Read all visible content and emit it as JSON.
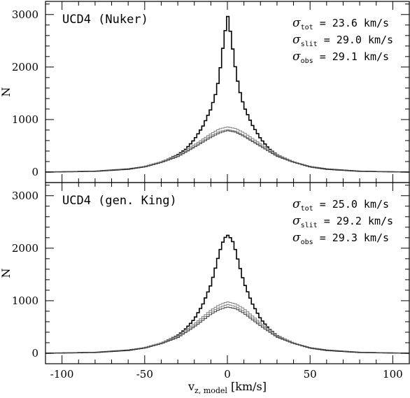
{
  "chart_data": [
    {
      "type": "line",
      "title": "UCD4 (Nuker)",
      "xlabel_main": "v",
      "xlabel_sub": "z, model",
      "xlabel_unit": "[km/s]",
      "ylabel": "N",
      "xlim": [
        -110,
        110
      ],
      "ylim": [
        -200,
        3250
      ],
      "x_ticks": [
        -100,
        -50,
        0,
        50,
        100
      ],
      "y_ticks": [
        0,
        1000,
        2000,
        3000
      ],
      "annotations": [
        {
          "sym": "σ",
          "sub": "tot",
          "text": " = 23.6 km/s"
        },
        {
          "sym": "σ",
          "sub": "slit",
          "text": " = 29.0 km/s"
        },
        {
          "sym": "σ",
          "sub": "obs",
          "text": " = 29.1 km/s"
        }
      ],
      "series": [
        {
          "color": "#000000",
          "x": [
            -110,
            -80,
            -60,
            -50,
            -40,
            -30,
            -25,
            -20,
            -15,
            -10,
            -7,
            -5,
            -3,
            -1,
            0,
            1,
            3,
            5,
            7,
            10,
            15,
            20,
            25,
            30,
            40,
            50,
            60,
            80,
            110
          ],
          "y": [
            0,
            15,
            55,
            100,
            190,
            330,
            440,
            620,
            860,
            1200,
            1500,
            1800,
            2300,
            2750,
            3000,
            2850,
            2400,
            1950,
            1600,
            1250,
            900,
            640,
            450,
            330,
            190,
            100,
            55,
            15,
            0
          ]
        },
        {
          "color": "#888888",
          "x": [
            -110,
            -80,
            -60,
            -50,
            -40,
            -30,
            -20,
            -10,
            -5,
            0,
            5,
            10,
            20,
            30,
            40,
            50,
            60,
            80,
            110
          ],
          "y": [
            0,
            20,
            65,
            110,
            200,
            320,
            520,
            730,
            820,
            860,
            830,
            750,
            540,
            330,
            200,
            110,
            65,
            20,
            0
          ]
        },
        {
          "color": "#888888",
          "x": [
            -110,
            -80,
            -60,
            -50,
            -40,
            -30,
            -20,
            -10,
            -5,
            0,
            5,
            10,
            20,
            30,
            40,
            50,
            60,
            80,
            110
          ],
          "y": [
            0,
            20,
            62,
            105,
            190,
            300,
            490,
            690,
            770,
            810,
            780,
            700,
            510,
            310,
            190,
            105,
            62,
            20,
            0
          ]
        },
        {
          "color": "#444444",
          "x": [
            -110,
            -80,
            -60,
            -50,
            -40,
            -30,
            -20,
            -10,
            -5,
            0,
            5,
            10,
            20,
            30,
            40,
            50,
            60,
            80,
            110
          ],
          "y": [
            0,
            18,
            60,
            100,
            180,
            290,
            470,
            660,
            740,
            790,
            760,
            680,
            490,
            300,
            185,
            100,
            60,
            18,
            0
          ]
        }
      ]
    },
    {
      "type": "line",
      "title": "UCD4 (gen. King)",
      "xlabel_main": "v",
      "xlabel_sub": "z, model",
      "xlabel_unit": "[km/s]",
      "ylabel": "N",
      "xlim": [
        -110,
        110
      ],
      "ylim": [
        -200,
        3250
      ],
      "x_ticks": [
        -100,
        -50,
        0,
        50,
        100
      ],
      "y_ticks": [
        0,
        1000,
        2000,
        3000
      ],
      "annotations": [
        {
          "sym": "σ",
          "sub": "tot",
          "text": " = 25.0 km/s"
        },
        {
          "sym": "σ",
          "sub": "slit",
          "text": " = 29.2 km/s"
        },
        {
          "sym": "σ",
          "sub": "obs",
          "text": " = 29.3 km/s"
        }
      ],
      "series": [
        {
          "color": "#000000",
          "x": [
            -110,
            -80,
            -60,
            -50,
            -40,
            -30,
            -25,
            -20,
            -15,
            -10,
            -7,
            -5,
            -3,
            -1,
            0,
            1,
            3,
            5,
            7,
            10,
            15,
            20,
            25,
            30,
            40,
            50,
            60,
            80,
            110
          ],
          "y": [
            0,
            15,
            55,
            100,
            190,
            340,
            470,
            650,
            920,
            1300,
            1650,
            1900,
            2100,
            2220,
            2250,
            2230,
            2150,
            1950,
            1700,
            1350,
            950,
            660,
            470,
            340,
            190,
            100,
            55,
            15,
            0
          ]
        },
        {
          "color": "#888888",
          "x": [
            -110,
            -80,
            -60,
            -50,
            -40,
            -30,
            -20,
            -10,
            -5,
            0,
            5,
            10,
            20,
            30,
            40,
            50,
            60,
            80,
            110
          ],
          "y": [
            0,
            20,
            65,
            110,
            200,
            330,
            560,
            820,
            920,
            980,
            940,
            850,
            580,
            340,
            200,
            110,
            65,
            20,
            0
          ]
        },
        {
          "color": "#888888",
          "x": [
            -110,
            -80,
            -60,
            -50,
            -40,
            -30,
            -20,
            -10,
            -5,
            0,
            5,
            10,
            20,
            30,
            40,
            50,
            60,
            80,
            110
          ],
          "y": [
            0,
            20,
            62,
            105,
            190,
            310,
            530,
            780,
            870,
            930,
            890,
            800,
            550,
            320,
            190,
            105,
            62,
            20,
            0
          ]
        },
        {
          "color": "#444444",
          "x": [
            -110,
            -80,
            -60,
            -50,
            -40,
            -30,
            -20,
            -10,
            -5,
            0,
            5,
            10,
            20,
            30,
            40,
            50,
            60,
            80,
            110
          ],
          "y": [
            0,
            18,
            60,
            100,
            180,
            295,
            500,
            740,
            830,
            880,
            850,
            760,
            520,
            305,
            185,
            100,
            60,
            18,
            0
          ]
        }
      ]
    }
  ]
}
